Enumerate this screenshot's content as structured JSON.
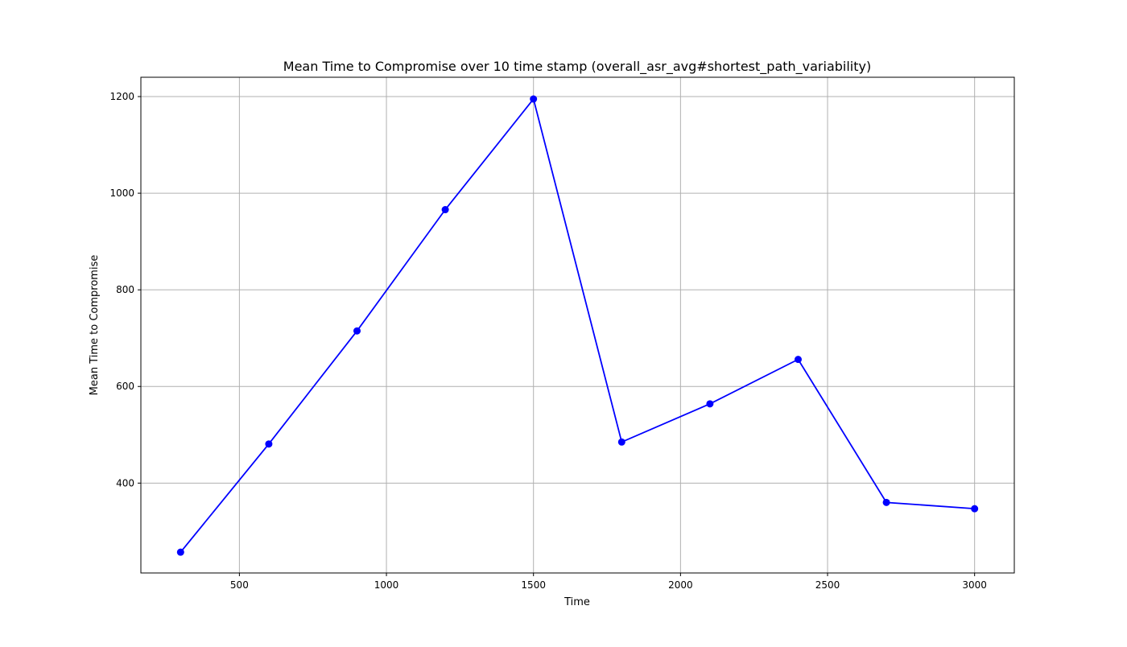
{
  "chart_data": {
    "type": "line",
    "title": "Mean Time to Compromise over 10 time stamp (overall_asr_avg#shortest_path_variability)",
    "xlabel": "Time",
    "ylabel": "Mean Time to Compromise",
    "xlim": [
      165,
      3135
    ],
    "ylim": [
      214,
      1240
    ],
    "xticks": [
      500,
      1000,
      1500,
      2000,
      2500,
      3000
    ],
    "yticks": [
      400,
      600,
      800,
      1000,
      1200
    ],
    "grid": true,
    "series": [
      {
        "color": "#0000ff",
        "marker": "circle",
        "points": [
          {
            "x": 300,
            "y": 257
          },
          {
            "x": 600,
            "y": 481
          },
          {
            "x": 900,
            "y": 715
          },
          {
            "x": 1200,
            "y": 966
          },
          {
            "x": 1500,
            "y": 1195
          },
          {
            "x": 1800,
            "y": 485
          },
          {
            "x": 2100,
            "y": 564
          },
          {
            "x": 2400,
            "y": 656
          },
          {
            "x": 2700,
            "y": 360
          },
          {
            "x": 3000,
            "y": 347
          }
        ]
      }
    ]
  }
}
